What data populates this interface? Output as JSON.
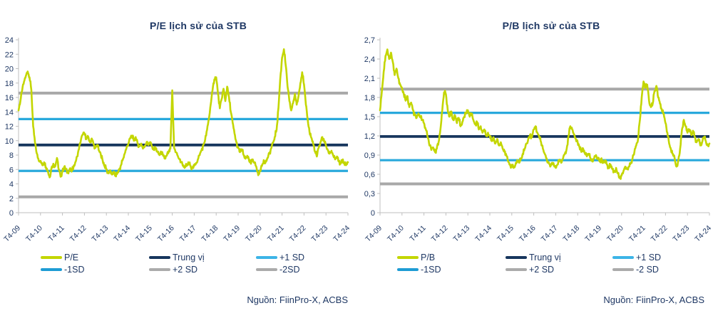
{
  "colors": {
    "series_yellow": "#C3D600",
    "median_navy": "#17365D",
    "sd_cyan": "#29A9DC",
    "sd_gray": "#A8A8A8",
    "text_navy": "#1F3864",
    "axis_gray": "#BFBFBF",
    "background": "#FFFFFF"
  },
  "chart_data": [
    {
      "type": "line",
      "title": "P/E lịch sử của STB",
      "source": "Nguồn: FiinPro-X, ACBS",
      "xlabel": "",
      "ylabel": "",
      "ylim": [
        0,
        24
      ],
      "ytick_step": 2,
      "ytick_labels": [
        "0",
        "2",
        "4",
        "6",
        "8",
        "10",
        "12",
        "14",
        "16",
        "18",
        "20",
        "22",
        "24"
      ],
      "x_labels": [
        "T4-09",
        "T4-10",
        "T4-11",
        "T4-12",
        "T4-13",
        "T4-14",
        "T4-15",
        "T4-16",
        "T4-17",
        "T4-18",
        "T4-19",
        "T4-20",
        "T4-21",
        "T4-22",
        "T4-23",
        "T4-24"
      ],
      "grid": false,
      "legend_position": "bottom",
      "series": {
        "name": "P/E",
        "color": "#C3D600",
        "start_period": "T4-09",
        "end_period": "T4-24",
        "frequency": "monthly",
        "monthly_values": [
          14.2,
          15.5,
          17.0,
          18.2,
          19.0,
          19.6,
          18.8,
          17.0,
          12.0,
          9.7,
          8.2,
          7.3,
          7.2,
          6.6,
          7.0,
          6.3,
          5.8,
          4.9,
          6.2,
          6.8,
          6.4,
          7.6,
          6.0,
          5.0,
          5.8,
          6.4,
          6.0,
          5.5,
          6.1,
          5.7,
          6.3,
          7.0,
          7.8,
          8.8,
          10.0,
          10.8,
          11.0,
          10.2,
          10.6,
          9.8,
          10.3,
          9.5,
          9.0,
          9.4,
          8.6,
          8.0,
          7.2,
          6.5,
          6.0,
          5.5,
          5.9,
          5.3,
          5.7,
          5.1,
          5.5,
          6.0,
          6.6,
          7.4,
          8.2,
          9.0,
          9.6,
          10.3,
          10.7,
          10.0,
          10.5,
          9.7,
          9.2,
          9.6,
          8.9,
          9.3,
          9.8,
          9.4,
          9.8,
          9.2,
          8.7,
          9.0,
          8.4,
          8.0,
          8.4,
          7.9,
          7.5,
          7.9,
          8.4,
          8.9,
          17.0,
          9.0,
          8.4,
          7.9,
          7.4,
          7.0,
          6.6,
          6.3,
          6.6,
          6.9,
          6.5,
          6.2,
          6.5,
          6.9,
          7.4,
          8.0,
          8.7,
          9.4,
          10.2,
          11.5,
          13.0,
          15.0,
          17.0,
          18.5,
          18.8,
          16.5,
          14.5,
          15.8,
          17.2,
          15.5,
          17.5,
          16.0,
          14.0,
          12.5,
          11.0,
          9.8,
          9.0,
          8.4,
          8.8,
          8.0,
          7.5,
          7.9,
          7.2,
          6.8,
          7.4,
          7.0,
          6.3,
          5.2,
          5.8,
          6.5,
          7.3,
          7.0,
          7.6,
          8.2,
          8.9,
          9.7,
          10.5,
          11.5,
          14.5,
          18.5,
          21.5,
          22.7,
          20.5,
          17.5,
          15.5,
          14.2,
          15.2,
          16.5,
          15.0,
          16.2,
          18.0,
          19.5,
          17.8,
          15.0,
          13.0,
          11.2,
          10.4,
          9.6,
          8.5,
          7.8,
          9.0,
          9.8,
          10.5,
          9.9,
          9.3,
          8.7,
          8.2,
          8.6,
          7.9,
          7.4,
          7.8,
          7.1,
          6.8,
          7.3,
          6.9,
          6.6,
          7.0
        ]
      },
      "ref_lines": [
        {
          "key": "plus2sd",
          "name": "+2 SD",
          "value": 16.6,
          "color": "#A8A8A8"
        },
        {
          "key": "plus1sd",
          "name": "+1 SD",
          "value": 13.0,
          "color": "#29A9DC"
        },
        {
          "key": "median",
          "name": "Trung vị",
          "value": 9.4,
          "color": "#17365D"
        },
        {
          "key": "minus1sd",
          "name": "-1SD",
          "value": 5.8,
          "color": "#29A9DC"
        },
        {
          "key": "minus2sd",
          "name": "-2SD",
          "value": 2.2,
          "color": "#A8A8A8"
        }
      ],
      "legend_rows": [
        [
          {
            "key": "series",
            "label": "P/E",
            "color": "#C3D600"
          },
          {
            "key": "median",
            "label": "Trung vị",
            "color": "#17365D"
          },
          {
            "key": "plus1sd",
            "label": "+1 SD",
            "color": "#3CB4E7"
          }
        ],
        [
          {
            "key": "minus1sd",
            "label": "-1SD",
            "color": "#1E9CD4"
          },
          {
            "key": "plus2sd",
            "label": "+2 SD",
            "color": "#ABABAB"
          },
          {
            "key": "minus2sd",
            "label": "-2SD",
            "color": "#ABABAB"
          }
        ]
      ]
    },
    {
      "type": "line",
      "title": "P/B lịch sử của STB",
      "source": "Nguồn: FiinPro-X, ACBS",
      "xlabel": "",
      "ylabel": "",
      "ylim": [
        0,
        2.7
      ],
      "ytick_step": 0.3,
      "ytick_labels": [
        "0",
        "0,3",
        "0,6",
        "0,9",
        "1,2",
        "1,5",
        "1,8",
        "2,1",
        "2,4",
        "2,7"
      ],
      "x_labels": [
        "T4-09",
        "T4-10",
        "T4-11",
        "T4-12",
        "T4-13",
        "T4-14",
        "T4-15",
        "T4-16",
        "T4-17",
        "T4-18",
        "T4-19",
        "T4-20",
        "T4-21",
        "T4-22",
        "T4-23",
        "T4-24"
      ],
      "grid": false,
      "legend_position": "bottom",
      "series": {
        "name": "P/B",
        "color": "#C3D600",
        "start_period": "T4-09",
        "end_period": "T4-24",
        "frequency": "monthly",
        "monthly_values": [
          1.6,
          1.9,
          2.2,
          2.45,
          2.55,
          2.4,
          2.5,
          2.35,
          2.15,
          2.25,
          2.1,
          2.0,
          1.95,
          1.85,
          1.75,
          1.82,
          1.65,
          1.72,
          1.6,
          1.52,
          1.48,
          1.55,
          1.5,
          1.45,
          1.4,
          1.3,
          1.18,
          1.05,
          0.98,
          1.02,
          0.95,
          1.0,
          1.1,
          1.3,
          1.6,
          1.88,
          1.85,
          1.6,
          1.5,
          1.58,
          1.45,
          1.52,
          1.4,
          1.48,
          1.35,
          1.42,
          1.5,
          1.55,
          1.6,
          1.5,
          1.55,
          1.45,
          1.38,
          1.42,
          1.3,
          1.35,
          1.25,
          1.3,
          1.2,
          1.25,
          1.2,
          1.12,
          1.18,
          1.08,
          1.15,
          1.05,
          1.1,
          1.0,
          0.95,
          0.9,
          0.8,
          0.75,
          0.72,
          0.7,
          0.75,
          0.82,
          0.78,
          0.85,
          0.92,
          1.0,
          1.08,
          1.15,
          1.22,
          1.18,
          1.3,
          1.35,
          1.25,
          1.18,
          1.1,
          1.0,
          0.92,
          0.85,
          0.78,
          0.72,
          0.78,
          0.75,
          0.7,
          0.75,
          0.82,
          0.78,
          0.85,
          0.92,
          1.0,
          1.2,
          1.35,
          1.3,
          1.22,
          1.15,
          1.1,
          1.02,
          0.95,
          1.0,
          0.92,
          0.88,
          0.92,
          0.85,
          0.8,
          0.85,
          0.9,
          0.85,
          0.8,
          0.85,
          0.78,
          0.82,
          0.75,
          0.7,
          0.75,
          0.68,
          0.65,
          0.7,
          0.62,
          0.55,
          0.58,
          0.65,
          0.72,
          0.68,
          0.72,
          0.78,
          0.85,
          0.95,
          1.05,
          1.15,
          1.45,
          1.8,
          2.05,
          1.95,
          2.0,
          1.75,
          1.65,
          1.7,
          1.9,
          1.98,
          1.8,
          1.7,
          1.6,
          1.55,
          1.4,
          1.25,
          1.08,
          0.98,
          0.92,
          0.85,
          0.72,
          0.82,
          1.0,
          1.3,
          1.45,
          1.35,
          1.25,
          1.3,
          1.22,
          1.28,
          1.18,
          1.1,
          1.15,
          1.05,
          1.1,
          1.18,
          1.12,
          1.05,
          1.08
        ]
      },
      "ref_lines": [
        {
          "key": "plus2sd",
          "name": "+2 SD",
          "value": 1.93,
          "color": "#A8A8A8"
        },
        {
          "key": "plus1sd",
          "name": "+1 SD",
          "value": 1.56,
          "color": "#29A9DC"
        },
        {
          "key": "median",
          "name": "Trung vị",
          "value": 1.19,
          "color": "#17365D"
        },
        {
          "key": "minus1sd",
          "name": "-1SD",
          "value": 0.82,
          "color": "#29A9DC"
        },
        {
          "key": "minus2sd",
          "name": "-2 SD",
          "value": 0.45,
          "color": "#A8A8A8"
        }
      ],
      "legend_rows": [
        [
          {
            "key": "series",
            "label": "P/B",
            "color": "#C3D600"
          },
          {
            "key": "median",
            "label": "Trung vị",
            "color": "#17365D"
          },
          {
            "key": "plus1sd",
            "label": "+1 SD",
            "color": "#3CB4E7"
          }
        ],
        [
          {
            "key": "minus1sd",
            "label": "-1SD",
            "color": "#1E9CD4"
          },
          {
            "key": "plus2sd",
            "label": "+2 SD",
            "color": "#ABABAB"
          },
          {
            "key": "minus2sd",
            "label": "-2 SD",
            "color": "#ABABAB"
          }
        ]
      ]
    }
  ]
}
